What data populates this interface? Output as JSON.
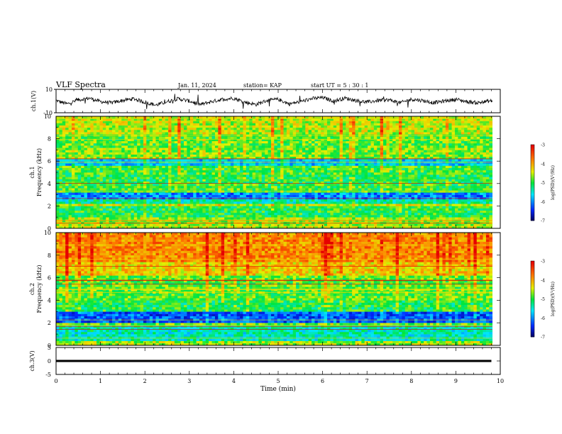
{
  "header": {
    "title": "VLF Spectra",
    "date": "Jan. 11, 2024",
    "station": "station= KAP",
    "start": "start  UT =   5 : 30 : 1"
  },
  "chart_data": [
    {
      "type": "line",
      "panel": "ch1-waveform",
      "ylabel": "ch.1(V)",
      "ylim": [
        -10,
        10
      ],
      "yticks": [
        "10",
        "-10"
      ],
      "xlim": [
        0,
        10
      ],
      "series": [
        {
          "x": [
            0,
            0.25,
            0.5,
            0.75,
            1.0,
            1.25,
            1.5,
            1.75,
            2.0,
            2.25,
            2.5,
            2.75,
            3.0,
            3.25,
            3.5,
            3.75,
            4.0,
            4.25,
            4.5,
            4.75,
            5.0,
            5.25,
            5.5,
            5.75,
            6.0,
            6.25,
            6.5,
            6.75,
            7.0,
            7.25,
            7.5,
            7.75,
            8.0,
            8.25,
            8.5,
            8.75,
            9.0,
            9.25,
            9.5,
            9.75
          ],
          "values": [
            0.5,
            -2.5,
            1.0,
            2.5,
            -0.5,
            -1.5,
            0.5,
            2.0,
            -1.0,
            -3.5,
            -0.5,
            2.0,
            0.0,
            -3.0,
            -0.5,
            1.5,
            2.5,
            -1.0,
            -3.0,
            0.5,
            1.5,
            -2.5,
            -0.5,
            2.0,
            3.0,
            0.0,
            2.5,
            0.5,
            -1.0,
            0.5,
            1.0,
            -1.5,
            1.5,
            0.5,
            -1.5,
            0.0,
            1.5,
            -0.5,
            -1.5,
            0.0
          ]
        }
      ]
    },
    {
      "type": "heatmap",
      "panel": "ch1-spectrogram",
      "ylabel": "ch.1\nFrequency (kHz)",
      "ylim": [
        0,
        10
      ],
      "yticks": [
        "0",
        "2",
        "4",
        "6",
        "8",
        "10"
      ],
      "xlim": [
        0,
        10
      ],
      "colorbar": {
        "label": "log(PSD)(V²/Hz)",
        "ticks": [
          "-3",
          "-4",
          "-5",
          "-6",
          "-7"
        ],
        "range": [
          -7,
          -3
        ]
      },
      "bands": [
        {
          "kHz": [
            0.0,
            0.3
          ],
          "log_psd": -4.5
        },
        {
          "kHz": [
            0.3,
            1.0
          ],
          "log_psd": -4.6
        },
        {
          "kHz": [
            1.0,
            2.0
          ],
          "log_psd": -5.0
        },
        {
          "kHz": [
            2.0,
            2.3
          ],
          "log_psd": -4.4
        },
        {
          "kHz": [
            2.3,
            2.7
          ],
          "log_psd": -5.3
        },
        {
          "kHz": [
            2.7,
            3.3
          ],
          "log_psd": -6.0
        },
        {
          "kHz": [
            3.3,
            4.0
          ],
          "log_psd": -4.9
        },
        {
          "kHz": [
            4.0,
            4.8
          ],
          "log_psd": -5.0
        },
        {
          "kHz": [
            4.8,
            5.6
          ],
          "log_psd": -4.9
        },
        {
          "kHz": [
            5.6,
            6.3
          ],
          "log_psd": -5.7
        },
        {
          "kHz": [
            6.3,
            7.2
          ],
          "log_psd": -4.7
        },
        {
          "kHz": [
            7.2,
            8.5
          ],
          "log_psd": -4.8
        },
        {
          "kHz": [
            8.5,
            10.0
          ],
          "log_psd": -4.5
        }
      ]
    },
    {
      "type": "heatmap",
      "panel": "ch2-spectrogram",
      "ylabel": "ch.2\nFrequency (kHz)",
      "ylim": [
        0,
        10
      ],
      "yticks": [
        "0",
        "2",
        "4",
        "6",
        "8",
        "10"
      ],
      "xlim": [
        0,
        10
      ],
      "colorbar": {
        "label": "log(PSD)(V²/Hz)",
        "ticks": [
          "-3",
          "-4",
          "-5",
          "-6",
          "-7"
        ],
        "range": [
          -7,
          -3
        ]
      },
      "bands": [
        {
          "kHz": [
            0.0,
            0.4
          ],
          "log_psd": -4.6
        },
        {
          "kHz": [
            0.4,
            1.8
          ],
          "log_psd": -5.4
        },
        {
          "kHz": [
            1.8,
            2.1
          ],
          "log_psd": -4.7
        },
        {
          "kHz": [
            2.1,
            3.0
          ],
          "log_psd": -6.2
        },
        {
          "kHz": [
            3.0,
            4.0
          ],
          "log_psd": -5.0
        },
        {
          "kHz": [
            4.0,
            6.3
          ],
          "log_psd": -4.8
        },
        {
          "kHz": [
            6.3,
            7.5
          ],
          "log_psd": -4.2
        },
        {
          "kHz": [
            7.5,
            10.0
          ],
          "log_psd": -3.8
        }
      ]
    },
    {
      "type": "line",
      "panel": "ch3-waveform",
      "ylabel": "ch.3(V)",
      "ylim": [
        -5,
        5
      ],
      "yticks": [
        "5",
        "0",
        "-5"
      ],
      "xlim": [
        0,
        10
      ],
      "xlabel": "Time (min)",
      "xticks": [
        "0",
        "1",
        "2",
        "3",
        "4",
        "5",
        "6",
        "7",
        "8",
        "9",
        "10"
      ],
      "series": [
        {
          "x": [
            0,
            9.8
          ],
          "values": [
            0,
            0
          ]
        }
      ]
    }
  ]
}
